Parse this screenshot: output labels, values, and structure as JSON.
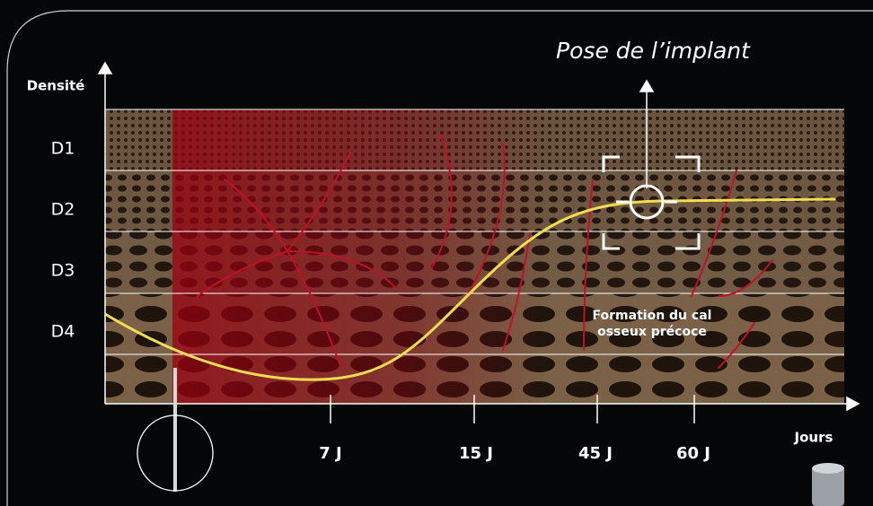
{
  "title": "Pose de l’implant",
  "y_axis": {
    "label": "Densité",
    "levels": [
      "D1",
      "D2",
      "D3",
      "D4"
    ]
  },
  "x_axis": {
    "label": "Jours",
    "ticks": [
      "7 J",
      "15 J",
      "45 J",
      "60 J"
    ]
  },
  "annotation": [
    "Formation du cal",
    "osseux précoce"
  ]
}
